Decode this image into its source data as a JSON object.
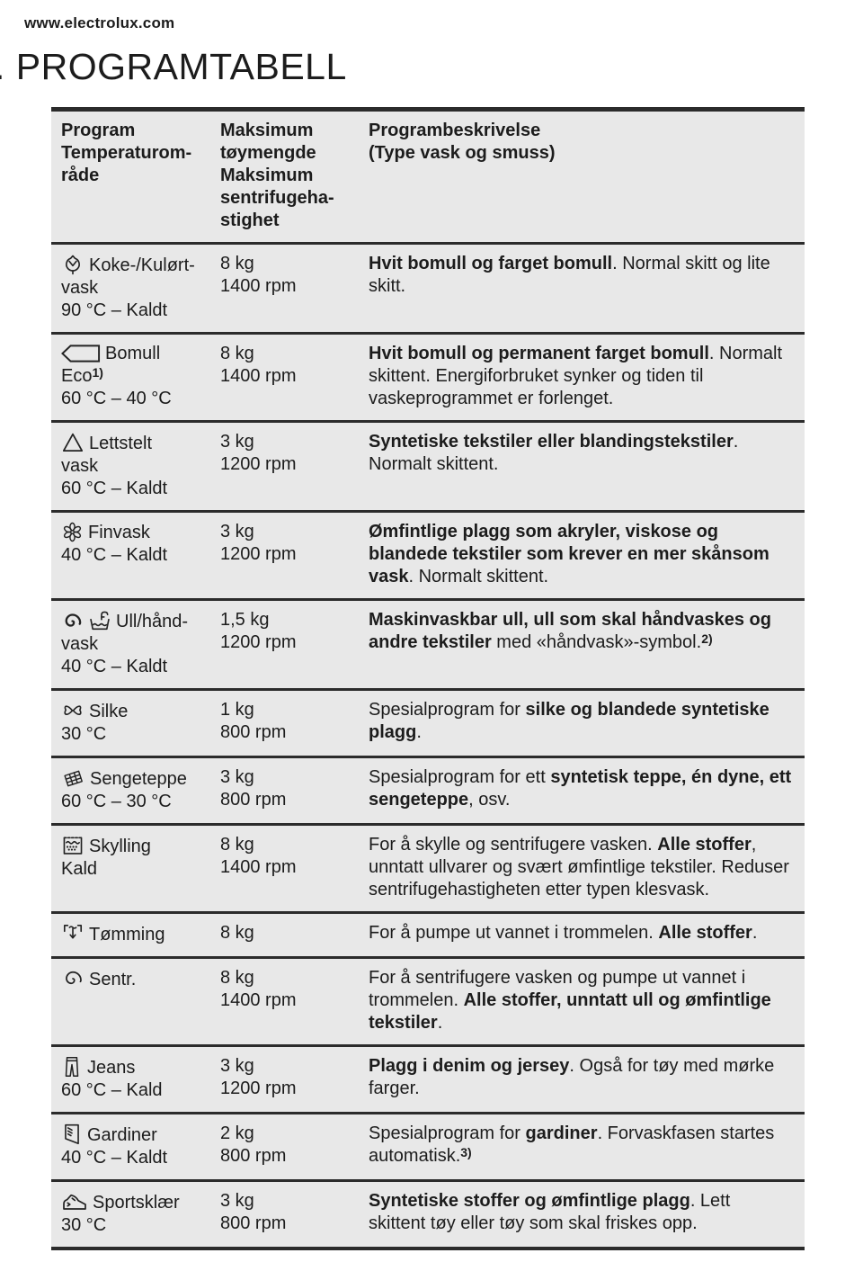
{
  "page": {
    "site": "www.electrolux.com",
    "title": ". PROGRAMTABELL"
  },
  "colors": {
    "table_background": "#e8e8e8",
    "rule": "#2b2b2b",
    "text": "#1c1c1c"
  },
  "table": {
    "headers": {
      "program": "Program\nTemperaturom-\nråde",
      "max": "Maksimum\ntøymengde\nMaksimum\nsentrifugeha-\nstighet",
      "description": "Programbeskrivelse\n(Type vask og smuss)"
    },
    "rows": [
      {
        "icons": [
          "cotton-icon"
        ],
        "name_lines": [
          "Koke-/Kulørt-",
          "vask"
        ],
        "name_sup": null,
        "temp": "90 °C – Kaldt",
        "max_lines": [
          "8 kg",
          "1400 rpm"
        ],
        "desc": [
          {
            "t": "Hvit bomull og farget bomull",
            "b": true
          },
          {
            "t": ". Normal skitt og lite skitt.",
            "b": false
          }
        ],
        "desc_sup": null
      },
      {
        "icons": [
          "cotton-eco-icon"
        ],
        "name_lines": [
          "Bomull",
          "Eco"
        ],
        "name_sup": "1)",
        "temp": "60 °C – 40 °C",
        "max_lines": [
          "8 kg",
          "1400 rpm"
        ],
        "desc": [
          {
            "t": "Hvit bomull og permanent farget bomull",
            "b": true
          },
          {
            "t": ". Normalt skittent. Energiforbruket synker og tiden til vaskeprogrammet er forlenget.",
            "b": false
          }
        ],
        "desc_sup": null
      },
      {
        "icons": [
          "easy-care-icon"
        ],
        "name_lines": [
          "Lettstelt",
          "vask"
        ],
        "name_sup": null,
        "temp": "60 °C – Kaldt",
        "max_lines": [
          "3 kg",
          "1200 rpm"
        ],
        "desc": [
          {
            "t": "Syntetiske tekstiler eller blandingstekstiler",
            "b": true
          },
          {
            "t": ". Normalt skittent.",
            "b": false
          }
        ],
        "desc_sup": null
      },
      {
        "icons": [
          "flower-icon"
        ],
        "name_lines": [
          "Finvask"
        ],
        "name_sup": null,
        "temp": "40 °C – Kaldt",
        "max_lines": [
          "3 kg",
          "1200 rpm"
        ],
        "desc": [
          {
            "t": "Ømfintlige plagg som akryler, viskose og blandede tekstiler som krever en mer skånsom vask",
            "b": true
          },
          {
            "t": ". Normalt skittent.",
            "b": false
          }
        ],
        "desc_sup": null
      },
      {
        "icons": [
          "wool-icon",
          "handwash-icon"
        ],
        "name_lines": [
          "Ull/hånd-",
          "vask"
        ],
        "name_sup": null,
        "temp": "40 °C – Kaldt",
        "max_lines": [
          "1,5 kg",
          "1200 rpm"
        ],
        "desc": [
          {
            "t": "Maskinvaskbar ull, ull som skal håndvaskes og andre tekstiler",
            "b": true
          },
          {
            "t": " med «håndvask»-symbol.",
            "b": false
          }
        ],
        "desc_sup": "2)"
      },
      {
        "icons": [
          "butterfly-icon"
        ],
        "name_lines": [
          "Silke"
        ],
        "name_sup": null,
        "temp": "30 °C",
        "max_lines": [
          "1 kg",
          "800 rpm"
        ],
        "desc": [
          {
            "t": "Spesialprogram for ",
            "b": false
          },
          {
            "t": "silke og blandede syntetiske plagg",
            "b": true
          },
          {
            "t": ".",
            "b": false
          }
        ],
        "desc_sup": null
      },
      {
        "icons": [
          "bedspread-icon"
        ],
        "name_lines": [
          "Sengeteppe"
        ],
        "name_sup": null,
        "temp": "60 °C – 30 °C",
        "max_lines": [
          "3 kg",
          "800 rpm"
        ],
        "desc": [
          {
            "t": "Spesialprogram for ett ",
            "b": false
          },
          {
            "t": "syntetisk teppe, én dyne, ett sengeteppe",
            "b": true
          },
          {
            "t": ", osv.",
            "b": false
          }
        ],
        "desc_sup": null
      },
      {
        "icons": [
          "rinse-icon"
        ],
        "name_lines": [
          "Skylling"
        ],
        "name_sup": null,
        "temp": "Kald",
        "max_lines": [
          "8 kg",
          "1400 rpm"
        ],
        "desc": [
          {
            "t": "For å skylle og sentrifugere vasken. ",
            "b": false
          },
          {
            "t": "Alle stoffer",
            "b": true
          },
          {
            "t": ", unntatt ullvarer og svært ømfintlige tekstiler. Reduser sentrifugehastigheten etter typen klesvask.",
            "b": false
          }
        ],
        "desc_sup": null
      },
      {
        "icons": [
          "drain-icon"
        ],
        "name_lines": [
          "Tømming"
        ],
        "name_sup": null,
        "temp": null,
        "max_lines": [
          "8 kg"
        ],
        "desc": [
          {
            "t": "For å pumpe ut vannet i trommelen. ",
            "b": false
          },
          {
            "t": "Alle stoffer",
            "b": true
          },
          {
            "t": ".",
            "b": false
          }
        ],
        "desc_sup": null
      },
      {
        "icons": [
          "spin-icon"
        ],
        "name_lines": [
          "Sentr."
        ],
        "name_sup": null,
        "temp": null,
        "max_lines": [
          "8 kg",
          "1400 rpm"
        ],
        "desc": [
          {
            "t": "For å sentrifugere vasken og pumpe ut vannet i trommelen. ",
            "b": false
          },
          {
            "t": "Alle stoffer, unntatt ull og ømfintlige tekstiler",
            "b": true
          },
          {
            "t": ".",
            "b": false
          }
        ],
        "desc_sup": null
      },
      {
        "icons": [
          "jeans-icon"
        ],
        "name_lines": [
          "Jeans"
        ],
        "name_sup": null,
        "temp": "60 °C – Kald",
        "max_lines": [
          "3 kg",
          "1200 rpm"
        ],
        "desc": [
          {
            "t": "Plagg i denim og jersey",
            "b": true
          },
          {
            "t": ". Også for tøy med mørke farger.",
            "b": false
          }
        ],
        "desc_sup": null
      },
      {
        "icons": [
          "curtain-icon"
        ],
        "name_lines": [
          "Gardiner"
        ],
        "name_sup": null,
        "temp": "40 °C – Kaldt",
        "max_lines": [
          "2 kg",
          "800 rpm"
        ],
        "desc": [
          {
            "t": "Spesialprogram for ",
            "b": false
          },
          {
            "t": "gardiner",
            "b": true
          },
          {
            "t": ". Forvaskfasen startes automatisk.",
            "b": false
          }
        ],
        "desc_sup": "3)"
      },
      {
        "icons": [
          "sneaker-icon"
        ],
        "name_lines": [
          "Sportsklær"
        ],
        "name_sup": null,
        "temp": "30 °C",
        "max_lines": [
          "3 kg",
          "800 rpm"
        ],
        "desc": [
          {
            "t": "Syntetiske stoffer og ømfintlige plagg",
            "b": true
          },
          {
            "t": ". Lett skittent tøy eller tøy som skal friskes opp.",
            "b": false
          }
        ],
        "desc_sup": null
      }
    ]
  }
}
